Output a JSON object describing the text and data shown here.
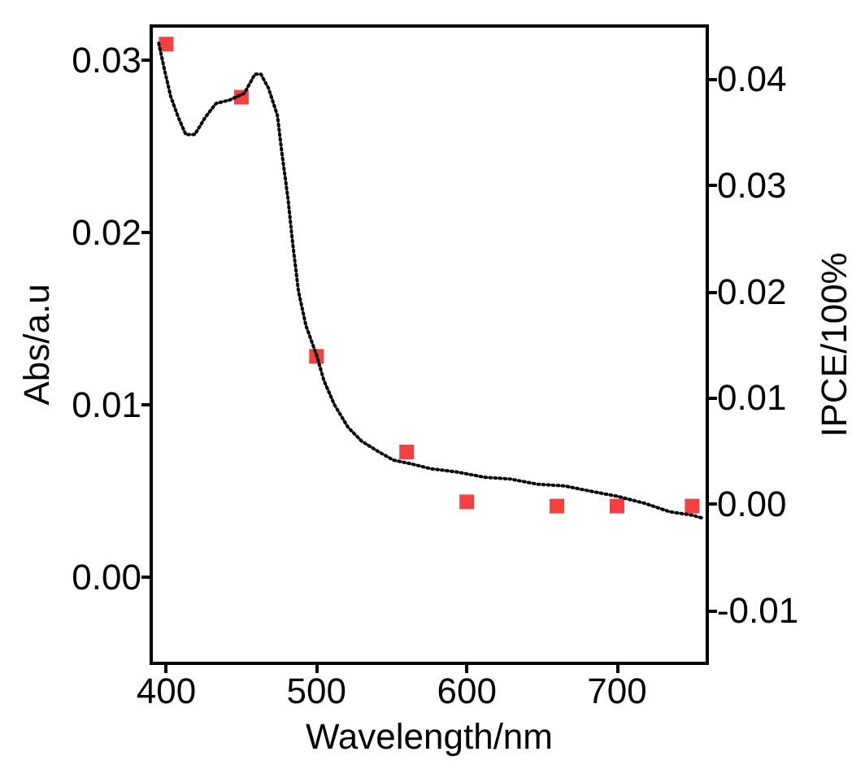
{
  "chart_data": {
    "type": "line",
    "xlabel": "Wavelength/nm",
    "ylabel": "Abs/a.u",
    "y2label": "IPCE/100%",
    "xlim": [
      390,
      760
    ],
    "xticks": [
      400,
      500,
      600,
      700
    ],
    "ylim": [
      -0.005,
      0.032
    ],
    "yticks": [
      {
        "value": 0,
        "label": "0.00"
      },
      0.01,
      0.02,
      0.03
    ],
    "y2lim": [
      -0.015,
      0.045
    ],
    "y2ticks": [
      -0.01,
      {
        "value": 0,
        "label": "0.00"
      },
      0.01,
      0.02,
      0.03,
      0.04
    ],
    "grid": false,
    "series": [
      {
        "color": "#000000",
        "line_style": "dotted",
        "marker": "none",
        "x": [
          395,
          399,
          403,
          408,
          413,
          419,
          426,
          433,
          442,
          452,
          459,
          463,
          468,
          474,
          477,
          481,
          484,
          488,
          493,
          500,
          505,
          512,
          521,
          530,
          541,
          551,
          562,
          576,
          594,
          612,
          629,
          647,
          665,
          682,
          700,
          718,
          735,
          750,
          758
        ],
        "values": [
          0.031,
          0.0294,
          0.0279,
          0.0267,
          0.0257,
          0.0257,
          0.0267,
          0.0275,
          0.0277,
          0.0281,
          0.0292,
          0.0292,
          0.0284,
          0.0268,
          0.0246,
          0.022,
          0.0195,
          0.0166,
          0.0146,
          0.0129,
          0.0114,
          0.01,
          0.0087,
          0.0079,
          0.0073,
          0.0068,
          0.0066,
          0.0063,
          0.0061,
          0.0058,
          0.0057,
          0.0054,
          0.0053,
          0.005,
          0.0047,
          0.0043,
          0.0038,
          0.0036,
          0.0034
        ]
      },
      {
        "type": "scatter",
        "axis": "y2",
        "color": "#ee1111",
        "marker": "square",
        "x": [
          400,
          450,
          500,
          560,
          600,
          660,
          700,
          750
        ],
        "values": [
          0.0433,
          0.0383,
          0.0139,
          0.0049,
          0.0002,
          -0.0002,
          -0.0002,
          -0.0002
        ]
      }
    ]
  }
}
